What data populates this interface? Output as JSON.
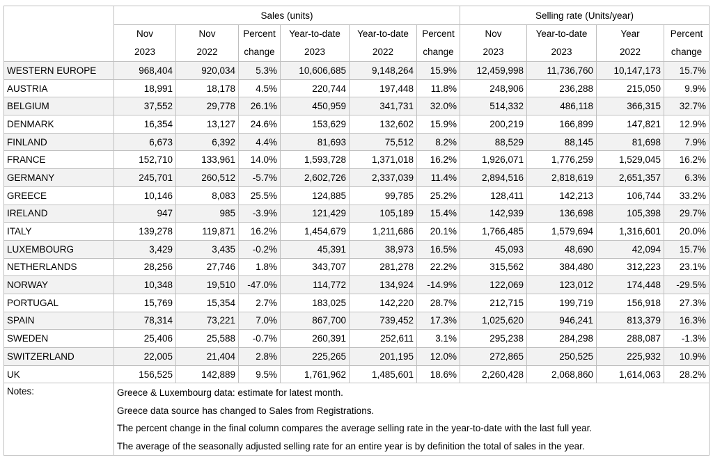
{
  "header": {
    "groups": [
      "Sales (units)",
      "Selling rate (Units/year)"
    ],
    "columns": [
      [
        "Nov",
        "2023"
      ],
      [
        "Nov",
        "2022"
      ],
      [
        "Percent",
        "change"
      ],
      [
        "Year-to-date",
        "2023"
      ],
      [
        "Year-to-date",
        "2022"
      ],
      [
        "Percent",
        "change"
      ],
      [
        "Nov",
        "2023"
      ],
      [
        "Year-to-date",
        "2023"
      ],
      [
        "Year",
        "2022"
      ],
      [
        "Percent",
        "change"
      ]
    ]
  },
  "table": {
    "rows": [
      [
        "WESTERN EUROPE",
        "968,404",
        "920,034",
        "5.3%",
        "10,606,685",
        "9,148,264",
        "15.9%",
        "12,459,998",
        "11,736,760",
        "10,147,173",
        "15.7%"
      ],
      [
        "AUSTRIA",
        "18,991",
        "18,178",
        "4.5%",
        "220,744",
        "197,448",
        "11.8%",
        "248,906",
        "236,288",
        "215,050",
        "9.9%"
      ],
      [
        "BELGIUM",
        "37,552",
        "29,778",
        "26.1%",
        "450,959",
        "341,731",
        "32.0%",
        "514,332",
        "486,118",
        "366,315",
        "32.7%"
      ],
      [
        "DENMARK",
        "16,354",
        "13,127",
        "24.6%",
        "153,629",
        "132,602",
        "15.9%",
        "200,219",
        "166,899",
        "147,821",
        "12.9%"
      ],
      [
        "FINLAND",
        "6,673",
        "6,392",
        "4.4%",
        "81,693",
        "75,512",
        "8.2%",
        "88,529",
        "88,145",
        "81,698",
        "7.9%"
      ],
      [
        "FRANCE",
        "152,710",
        "133,961",
        "14.0%",
        "1,593,728",
        "1,371,018",
        "16.2%",
        "1,926,071",
        "1,776,259",
        "1,529,045",
        "16.2%"
      ],
      [
        "GERMANY",
        "245,701",
        "260,512",
        "-5.7%",
        "2,602,726",
        "2,337,039",
        "11.4%",
        "2,894,516",
        "2,818,619",
        "2,651,357",
        "6.3%"
      ],
      [
        "GREECE",
        "10,146",
        "8,083",
        "25.5%",
        "124,885",
        "99,785",
        "25.2%",
        "128,411",
        "142,213",
        "106,744",
        "33.2%"
      ],
      [
        "IRELAND",
        "947",
        "985",
        "-3.9%",
        "121,429",
        "105,189",
        "15.4%",
        "142,939",
        "136,698",
        "105,398",
        "29.7%"
      ],
      [
        "ITALY",
        "139,278",
        "119,871",
        "16.2%",
        "1,454,679",
        "1,211,686",
        "20.1%",
        "1,766,485",
        "1,579,694",
        "1,316,601",
        "20.0%"
      ],
      [
        "LUXEMBOURG",
        "3,429",
        "3,435",
        "-0.2%",
        "45,391",
        "38,973",
        "16.5%",
        "45,093",
        "48,690",
        "42,094",
        "15.7%"
      ],
      [
        "NETHERLANDS",
        "28,256",
        "27,746",
        "1.8%",
        "343,707",
        "281,278",
        "22.2%",
        "315,562",
        "384,480",
        "312,223",
        "23.1%"
      ],
      [
        "NORWAY",
        "10,348",
        "19,510",
        "-47.0%",
        "114,772",
        "134,924",
        "-14.9%",
        "122,069",
        "123,012",
        "174,448",
        "-29.5%"
      ],
      [
        "PORTUGAL",
        "15,769",
        "15,354",
        "2.7%",
        "183,025",
        "142,220",
        "28.7%",
        "212,715",
        "199,719",
        "156,918",
        "27.3%"
      ],
      [
        "SPAIN",
        "78,314",
        "73,221",
        "7.0%",
        "867,700",
        "739,452",
        "17.3%",
        "1,025,620",
        "946,241",
        "813,379",
        "16.3%"
      ],
      [
        "SWEDEN",
        "25,406",
        "25,588",
        "-0.7%",
        "260,391",
        "252,611",
        "3.1%",
        "295,238",
        "284,298",
        "288,087",
        "-1.3%"
      ],
      [
        "SWITZERLAND",
        "22,005",
        "21,404",
        "2.8%",
        "225,265",
        "201,195",
        "12.0%",
        "272,865",
        "250,525",
        "225,932",
        "10.9%"
      ],
      [
        "UK",
        "156,525",
        "142,889",
        "9.5%",
        "1,761,962",
        "1,485,601",
        "18.6%",
        "2,260,428",
        "2,068,860",
        "1,614,063",
        "28.2%"
      ]
    ]
  },
  "notes": {
    "label": "Notes:",
    "lines": [
      "Greece & Luxembourg data: estimate for latest month.",
      "Greece data source has changed to Sales from Registrations.",
      "The percent change in the final column compares the average selling rate in the year-to-date with the last full year.",
      "The average of the seasonally adjusted selling rate for an entire year is by definition the total of sales in the year."
    ]
  }
}
